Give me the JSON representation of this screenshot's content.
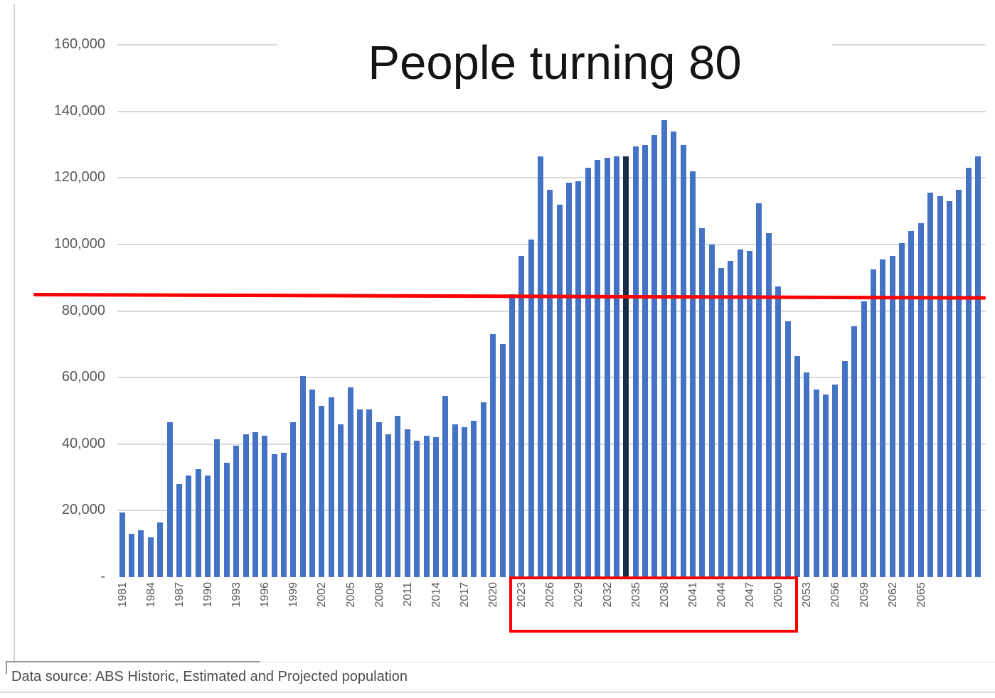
{
  "title": "People turning 80",
  "footer": {
    "source_text": "Data source: ABS Historic, Estimated and Projected population"
  },
  "colors": {
    "bar": "#4472c4",
    "dark_marker_bar": "#1b2c47",
    "red_annotation": "#fe0000",
    "gridline": "#d9d9d9",
    "axis_text": "#595959",
    "title_text": "#141414",
    "footer_text": "#4d4d4d"
  },
  "y_axis": {
    "ticks": [
      {
        "label": "160,000",
        "value": 160000
      },
      {
        "label": "140,000",
        "value": 140000
      },
      {
        "label": "120,000",
        "value": 120000
      },
      {
        "label": "100,000",
        "value": 100000
      },
      {
        "label": "80,000",
        "value": 80000
      },
      {
        "label": "60,000",
        "value": 60000
      },
      {
        "label": "40,000",
        "value": 40000
      },
      {
        "label": "20,000",
        "value": 20000
      },
      {
        "label": "-",
        "value": 0
      }
    ]
  },
  "x_axis": {
    "tick_labels": [
      "1981",
      "1984",
      "1987",
      "1990",
      "1993",
      "1996",
      "1999",
      "2002",
      "2005",
      "2008",
      "2011",
      "2014",
      "2017",
      "2020",
      "2023",
      "2026",
      "2029",
      "2032",
      "2035",
      "2038",
      "2041",
      "2044",
      "2047",
      "2050",
      "2053",
      "2056",
      "2059",
      "2062",
      "2065"
    ]
  },
  "annotations": {
    "red_line_value": 85000,
    "red_box_year_start": 2023,
    "red_box_year_end": 2050,
    "dark_marker_year": 2034
  },
  "chart_data": {
    "type": "bar",
    "title": "People turning 80",
    "xlabel": "",
    "ylabel": "",
    "ylim": [
      0,
      160000
    ],
    "grid": true,
    "legend": false,
    "x": [
      1981,
      1982,
      1983,
      1984,
      1985,
      1986,
      1987,
      1988,
      1989,
      1990,
      1991,
      1992,
      1993,
      1994,
      1995,
      1996,
      1997,
      1998,
      1999,
      2000,
      2001,
      2002,
      2003,
      2004,
      2005,
      2006,
      2007,
      2008,
      2009,
      2010,
      2011,
      2012,
      2013,
      2014,
      2015,
      2016,
      2017,
      2018,
      2019,
      2020,
      2021,
      2022,
      2023,
      2024,
      2025,
      2026,
      2027,
      2028,
      2029,
      2030,
      2031,
      2032,
      2033,
      2034,
      2035,
      2036,
      2037,
      2038,
      2039,
      2040,
      2041,
      2042,
      2043,
      2044,
      2045,
      2046,
      2047,
      2048,
      2049,
      2050,
      2051,
      2052,
      2053,
      2054,
      2055,
      2056,
      2057,
      2058,
      2059,
      2060,
      2061,
      2062,
      2063,
      2064,
      2065,
      2066,
      2067,
      2068,
      2069,
      2070,
      2071
    ],
    "values": [
      19500,
      13000,
      14000,
      12000,
      16500,
      46500,
      28000,
      30500,
      32500,
      30500,
      41500,
      34500,
      39500,
      43000,
      43500,
      42500,
      37000,
      37500,
      46500,
      60500,
      56500,
      51500,
      54000,
      46000,
      57000,
      50500,
      50500,
      46500,
      43000,
      48500,
      44500,
      41000,
      42500,
      42000,
      54500,
      46000,
      45000,
      47000,
      52500,
      73000,
      70000,
      85000,
      96500,
      101500,
      126500,
      116500,
      112000,
      118500,
      119000,
      123000,
      125500,
      126000,
      126500,
      126500,
      129500,
      130000,
      133000,
      137500,
      134000,
      130000,
      122000,
      105000,
      100000,
      93000,
      95000,
      98500,
      98000,
      112500,
      103500,
      87500,
      77000,
      66500,
      61500,
      56500,
      55000,
      58000,
      65000,
      75500,
      83000,
      92500,
      95500,
      96500,
      100500,
      104000,
      106500,
      115500,
      114500,
      113000,
      116500,
      123000,
      126500
    ]
  }
}
